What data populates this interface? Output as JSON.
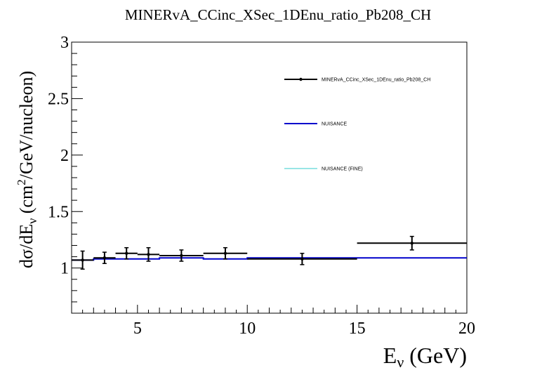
{
  "chart_data": {
    "type": "line",
    "title": "MINERvA_CCinc_XSec_1DEnu_ratio_Pb208_CH",
    "xlabel": "E",
    "xlabel_sub": "ν",
    "xlabel_unit": " (GeV)",
    "ylabel_parts": {
      "pre": "dσ/dE",
      "sub": "ν",
      "mid": " (cm",
      "sup": "2",
      "post": "/GeV/nucleon)"
    },
    "xlim": [
      2,
      20
    ],
    "ylim": [
      0.6,
      3.0
    ],
    "x_ticks": [
      5,
      10,
      15,
      20
    ],
    "x_tick_labels": [
      "5",
      "10",
      "15",
      "20"
    ],
    "y_ticks": [
      1,
      1.5,
      2,
      2.5,
      3
    ],
    "y_tick_labels": [
      "1",
      "1.5",
      "2",
      "2.5",
      "3"
    ],
    "grid": false,
    "legend_position": "top-right",
    "series": [
      {
        "name": "MINERvA_CCinc_XSec_1DEnu_ratio_Pb208_CH",
        "color": "#000000",
        "style": "points-with-errors",
        "bins": [
          {
            "lo": 2,
            "hi": 3,
            "y": 1.07,
            "err": 0.08
          },
          {
            "lo": 3,
            "hi": 4,
            "y": 1.09,
            "err": 0.05
          },
          {
            "lo": 4,
            "hi": 5,
            "y": 1.13,
            "err": 0.05
          },
          {
            "lo": 5,
            "hi": 6,
            "y": 1.12,
            "err": 0.06
          },
          {
            "lo": 6,
            "hi": 8,
            "y": 1.11,
            "err": 0.05
          },
          {
            "lo": 8,
            "hi": 10,
            "y": 1.13,
            "err": 0.05
          },
          {
            "lo": 10,
            "hi": 15,
            "y": 1.08,
            "err": 0.05
          },
          {
            "lo": 15,
            "hi": 20,
            "y": 1.22,
            "err": 0.06
          }
        ]
      },
      {
        "name": "NUISANCE",
        "color": "#0000cc",
        "style": "histogram",
        "bins": [
          {
            "lo": 2,
            "hi": 3,
            "y": 1.07
          },
          {
            "lo": 3,
            "hi": 4,
            "y": 1.08
          },
          {
            "lo": 4,
            "hi": 5,
            "y": 1.08
          },
          {
            "lo": 5,
            "hi": 6,
            "y": 1.08
          },
          {
            "lo": 6,
            "hi": 8,
            "y": 1.09
          },
          {
            "lo": 8,
            "hi": 10,
            "y": 1.08
          },
          {
            "lo": 10,
            "hi": 15,
            "y": 1.09
          },
          {
            "lo": 15,
            "hi": 20,
            "y": 1.09
          }
        ]
      },
      {
        "name": "NUISANCE (FINE)",
        "color": "#33cccc",
        "style": "line",
        "points": []
      }
    ]
  }
}
